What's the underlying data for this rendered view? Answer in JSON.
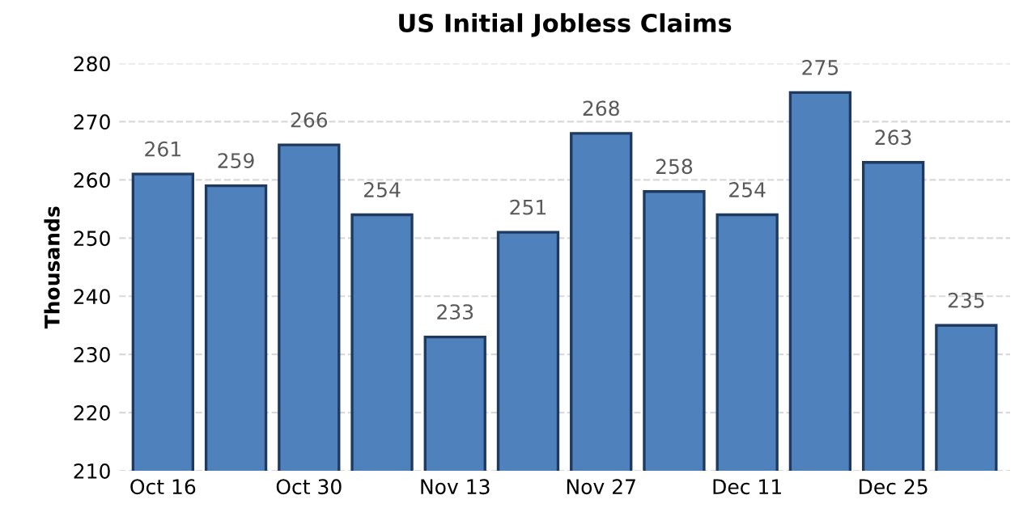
{
  "chart_data": {
    "type": "bar",
    "title": "US Initial Jobless Claims",
    "ylabel": "Thousands",
    "categories": [
      "Oct 16",
      null,
      "Oct 30",
      null,
      "Nov 13",
      null,
      "Nov 27",
      null,
      "Dec 11",
      null,
      "Dec 25",
      null
    ],
    "values": [
      261,
      259,
      266,
      254,
      233,
      251,
      268,
      258,
      254,
      275,
      263,
      235
    ],
    "color": "#4f81bd",
    "ylim": [
      210,
      280
    ],
    "yticks": [
      210,
      220,
      230,
      240,
      250,
      260,
      270,
      280
    ],
    "grid": "y",
    "line_style": "dashed",
    "data_labels": true
  }
}
